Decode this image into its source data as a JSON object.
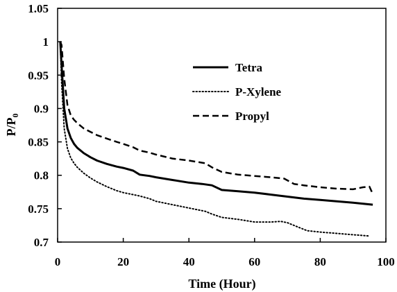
{
  "chart_data": {
    "type": "line",
    "xlabel": "Time (Hour)",
    "ylabel": {
      "main": "P/P",
      "subscript": "0"
    },
    "xlim": [
      0,
      100
    ],
    "ylim": [
      0.7,
      1.05
    ],
    "xticks": [
      "0",
      "20",
      "40",
      "60",
      "80",
      "100"
    ],
    "yticks": [
      "0.7",
      "0.75",
      "0.8",
      "0.85",
      "0.9",
      "0.95",
      "1",
      "1.05"
    ],
    "grid": false,
    "legend_position": "inside upper-right",
    "series": [
      {
        "name": "Tetra",
        "style": "solid",
        "color": "#000000",
        "x": [
          0.8,
          1.2,
          2,
          3,
          4,
          5,
          6,
          8,
          10,
          12,
          15,
          18,
          20,
          23,
          25,
          28,
          30,
          35,
          40,
          44,
          47,
          50,
          55,
          60,
          65,
          70,
          75,
          80,
          85,
          90,
          96
        ],
        "y": [
          1.0,
          0.965,
          0.9,
          0.87,
          0.856,
          0.847,
          0.841,
          0.833,
          0.827,
          0.822,
          0.817,
          0.813,
          0.811,
          0.807,
          0.801,
          0.799,
          0.797,
          0.793,
          0.789,
          0.787,
          0.785,
          0.778,
          0.776,
          0.774,
          0.771,
          0.768,
          0.765,
          0.763,
          0.761,
          0.759,
          0.756
        ]
      },
      {
        "name": "P-Xylene",
        "style": "dotted",
        "color": "#000000",
        "x": [
          0.8,
          1.2,
          2,
          3,
          4,
          5,
          6,
          8,
          10,
          12,
          15,
          18,
          20,
          23,
          25,
          28,
          30,
          35,
          40,
          45,
          47,
          50,
          55,
          60,
          65,
          68,
          70,
          73,
          76,
          80,
          85,
          90,
          95
        ],
        "y": [
          1.0,
          0.94,
          0.87,
          0.84,
          0.826,
          0.818,
          0.812,
          0.803,
          0.796,
          0.79,
          0.783,
          0.777,
          0.774,
          0.771,
          0.769,
          0.765,
          0.761,
          0.756,
          0.751,
          0.746,
          0.742,
          0.737,
          0.734,
          0.73,
          0.73,
          0.731,
          0.729,
          0.723,
          0.717,
          0.715,
          0.713,
          0.711,
          0.709
        ]
      },
      {
        "name": "Propyl",
        "style": "dashed",
        "color": "#000000",
        "x": [
          0.8,
          1.2,
          2,
          3,
          4,
          5,
          6,
          8,
          10,
          12,
          15,
          18,
          20,
          23,
          25,
          28,
          30,
          35,
          40,
          45,
          47,
          50,
          55,
          60,
          65,
          69,
          72,
          75,
          80,
          85,
          90,
          93,
          95,
          96
        ],
        "y": [
          1.0,
          0.995,
          0.945,
          0.905,
          0.89,
          0.883,
          0.878,
          0.87,
          0.865,
          0.86,
          0.855,
          0.85,
          0.847,
          0.842,
          0.837,
          0.834,
          0.831,
          0.825,
          0.822,
          0.818,
          0.812,
          0.805,
          0.801,
          0.799,
          0.797,
          0.795,
          0.787,
          0.785,
          0.782,
          0.78,
          0.779,
          0.782,
          0.783,
          0.772
        ]
      }
    ]
  }
}
